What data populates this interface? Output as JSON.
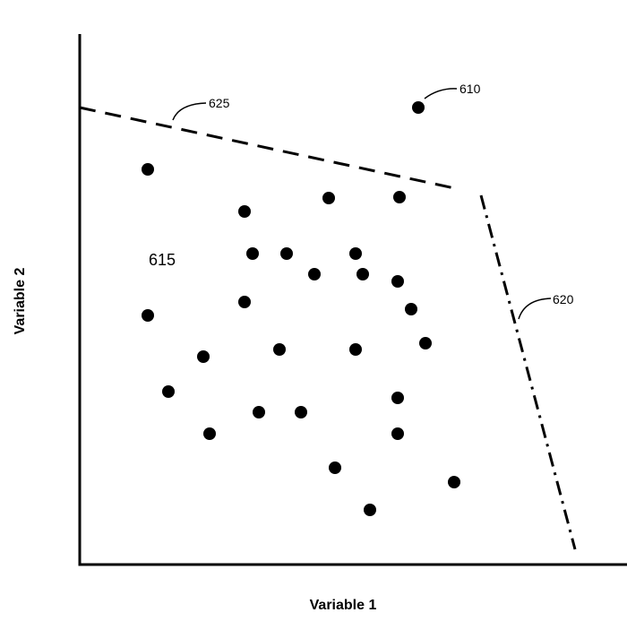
{
  "figure": {
    "xlabel": "Variable 1",
    "ylabel": "Variable 2",
    "labels": {
      "outlier_point": "610",
      "region": "615",
      "boundary_dashdot": "620",
      "boundary_dashed": "625"
    }
  }
}
